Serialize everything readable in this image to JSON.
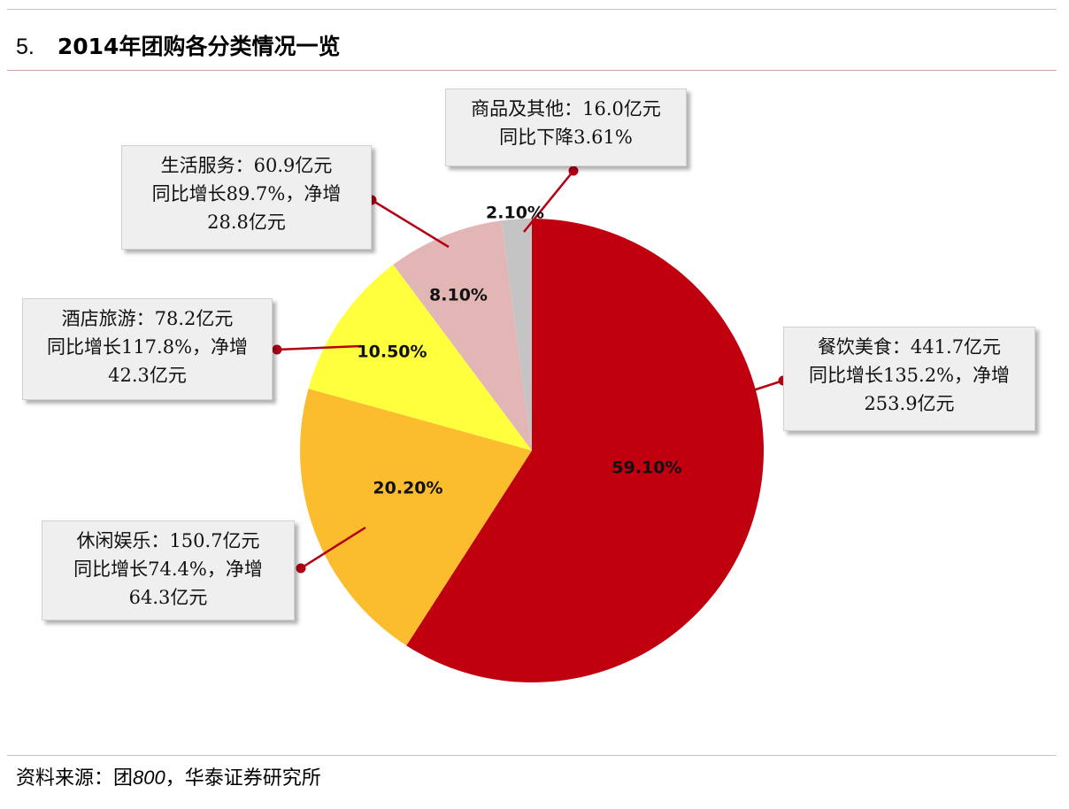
{
  "header": {
    "number": "5.",
    "title": "2014年团购各分类情况一览"
  },
  "source": {
    "prefix": "资料来源：团",
    "italic": "800",
    "suffix": "，华泰证券研究所"
  },
  "colors": {
    "food": "#c0000f",
    "entertainment": "#fbbd2e",
    "hotel": "#ffff3e",
    "life": "#e3b6b6",
    "other": "#c4c4c4",
    "leader": "#b30014"
  },
  "callouts": {
    "other": {
      "line1": "商品及其他：16.0亿元",
      "line2": "同比下降3.61%"
    },
    "life": {
      "line1": "生活服务：60.9亿元",
      "line2": "同比增长89.7%，净增",
      "line3": "28.8亿元"
    },
    "hotel": {
      "line1": "酒店旅游：78.2亿元",
      "line2": "同比增长117.8%，净增",
      "line3": "42.3亿元"
    },
    "food": {
      "line1": "餐饮美食：441.7亿元",
      "line2": "同比增长135.2%，净增",
      "line3": "253.9亿元"
    },
    "entertainment": {
      "line1": "休闲娱乐：150.7亿元",
      "line2": "同比增长74.4%，净增",
      "line3": "64.3亿元"
    }
  },
  "chart_data": {
    "type": "pie",
    "title": "2014年团购各分类情况一览",
    "slices": [
      {
        "key": "food",
        "label": "59.10%",
        "value": 59.1
      },
      {
        "key": "entertainment",
        "label": "20.20%",
        "value": 20.2
      },
      {
        "key": "hotel",
        "label": "10.50%",
        "value": 10.5
      },
      {
        "key": "life",
        "label": "8.10%",
        "value": 8.1
      },
      {
        "key": "other",
        "label": "2.10%",
        "value": 2.1
      }
    ]
  }
}
